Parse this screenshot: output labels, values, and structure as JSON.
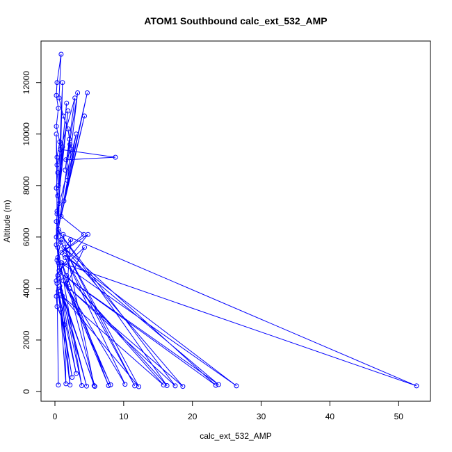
{
  "chart_data": {
    "type": "line",
    "title": "ATOM1 Southbound calc_ext_532_AMP",
    "xlabel": "calc_ext_532_AMP",
    "ylabel": "Altitude (m)",
    "xlim": [
      0,
      55
    ],
    "ylim": [
      0,
      13000
    ],
    "x_ticks": [
      0,
      10,
      20,
      30,
      40,
      50
    ],
    "y_ticks": [
      0,
      2000,
      4000,
      6000,
      8000,
      10000,
      12000
    ],
    "grid": false,
    "legend": "none",
    "line_color": "#0000ff",
    "marker": "open-circle",
    "series": [
      {
        "points": [
          [
            0.5,
            250
          ],
          [
            0.3,
            4200
          ],
          [
            2.2,
            250
          ],
          [
            0.4,
            5600
          ],
          [
            3.9,
            230
          ],
          [
            0.6,
            4400
          ],
          [
            4.6,
            210
          ],
          [
            0.8,
            3900
          ],
          [
            5.8,
            200
          ],
          [
            1.0,
            5000
          ],
          [
            7.8,
            230
          ],
          [
            0.7,
            4800
          ],
          [
            8.1,
            260
          ],
          [
            1.2,
            4300
          ],
          [
            10.2,
            280
          ],
          [
            1.5,
            5200
          ],
          [
            11.6,
            220
          ],
          [
            0.9,
            5800
          ],
          [
            12.2,
            190
          ],
          [
            1.1,
            3700
          ],
          [
            15.8,
            250
          ],
          [
            1.7,
            4500
          ],
          [
            16.3,
            230
          ],
          [
            0.6,
            6200
          ],
          [
            17.5,
            220
          ],
          [
            2.1,
            4000
          ],
          [
            18.6,
            200
          ],
          [
            1.3,
            5600
          ],
          [
            23.4,
            240
          ],
          [
            0.8,
            4600
          ],
          [
            23.8,
            270
          ],
          [
            1.4,
            5300
          ],
          [
            26.4,
            220
          ],
          [
            0.9,
            5000
          ],
          [
            52.6,
            220
          ],
          [
            1.2,
            6100
          ],
          [
            5.7,
            230
          ],
          [
            0.7,
            4100
          ],
          [
            3.1,
            700
          ],
          [
            0.5,
            3900
          ],
          [
            2.5,
            550
          ],
          [
            0.8,
            3200
          ],
          [
            1.6,
            300
          ],
          [
            1.4,
            2600
          ],
          [
            0.3,
            3300
          ],
          [
            0.2,
            3700
          ],
          [
            0.4,
            4500
          ],
          [
            0.3,
            5100
          ],
          [
            0.9,
            5900
          ],
          [
            0.2,
            6600
          ],
          [
            0.6,
            7300
          ],
          [
            0.2,
            7900
          ],
          [
            0.4,
            8500
          ],
          [
            0.3,
            9100
          ],
          [
            0.7,
            9700
          ],
          [
            0.2,
            10300
          ],
          [
            0.5,
            11000
          ],
          [
            0.2,
            11500
          ],
          [
            0.3,
            12000
          ],
          [
            0.9,
            13100
          ],
          [
            0.6,
            11400
          ],
          [
            1.2,
            10700
          ],
          [
            1.9,
            10200
          ],
          [
            2.1,
            9800
          ],
          [
            2.4,
            9400
          ],
          [
            1.6,
            9000
          ],
          [
            8.8,
            9100
          ],
          [
            0.8,
            9400
          ],
          [
            2.9,
            11400
          ],
          [
            1.5,
            8600
          ],
          [
            3.3,
            11600
          ],
          [
            1.8,
            8200
          ],
          [
            4.7,
            11600
          ],
          [
            1.3,
            7400
          ],
          [
            4.3,
            10700
          ],
          [
            0.9,
            6800
          ],
          [
            4.2,
            6100
          ],
          [
            1.0,
            5400
          ],
          [
            4.8,
            6100
          ],
          [
            0.6,
            4700
          ],
          [
            4.3,
            5600
          ],
          [
            1.8,
            4200
          ],
          [
            2.3,
            5900
          ],
          [
            0.4,
            5200
          ],
          [
            1.1,
            12000
          ],
          [
            0.5,
            8000
          ],
          [
            1.7,
            11200
          ],
          [
            0.4,
            7600
          ],
          [
            1.9,
            10900
          ],
          [
            0.3,
            6900
          ],
          [
            3.1,
            10000
          ],
          [
            0.5,
            6300
          ],
          [
            2.2,
            9600
          ],
          [
            0.2,
            5700
          ],
          [
            1.1,
            9500
          ],
          [
            0.3,
            8800
          ],
          [
            0.2,
            10000
          ],
          [
            0.3,
            7000
          ],
          [
            0.2,
            6000
          ],
          [
            0.5,
            5000
          ],
          [
            0.2,
            4300
          ]
        ]
      }
    ]
  }
}
